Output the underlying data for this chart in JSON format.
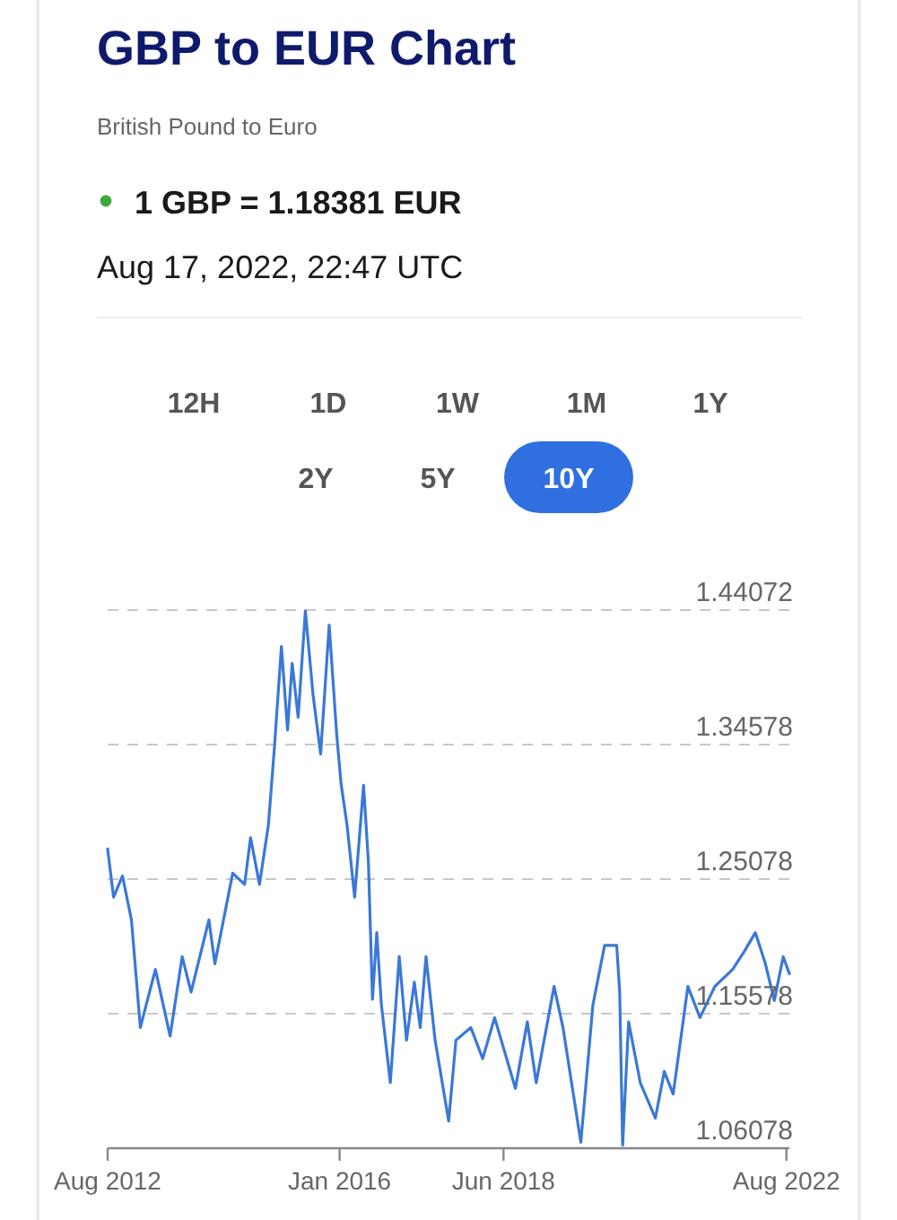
{
  "chart_data": {
    "type": "line",
    "title": "GBP to EUR Chart",
    "subtitle": "British Pound to Euro",
    "annotations": [
      "1 GBP = 1.18381 EUR",
      "Aug 17, 2022, 22:47 UTC",
      "12H",
      "1D",
      "1W",
      "1M",
      "1Y",
      "2Y",
      "5Y",
      "10Y"
    ],
    "x": [
      "2012-08-01",
      "2012-09-02",
      "2012-10-20",
      "2012-12-07",
      "2013-01-24",
      "2013-04-15",
      "2013-07-03",
      "2013-09-06",
      "2013-10-24",
      "2014-01-28",
      "2014-03-01",
      "2014-06-05",
      "2014-08-08",
      "2014-09-09",
      "2014-10-27",
      "2014-12-14",
      "2015-01-15",
      "2015-02-22",
      "2015-03-27",
      "2015-04-21",
      "2015-05-23",
      "2015-07-01",
      "2015-08-11",
      "2015-09-21",
      "2015-11-06",
      "2015-12-17",
      "2016-01-09",
      "2016-02-10",
      "2016-03-22",
      "2016-05-09",
      "2016-06-04",
      "2016-06-26",
      "2016-07-19",
      "2016-08-13",
      "2016-09-30",
      "2016-11-17",
      "2016-12-26",
      "2017-02-06",
      "2017-03-10",
      "2017-04-10",
      "2017-05-29",
      "2017-08-10",
      "2017-09-18",
      "2017-12-07",
      "2018-02-09",
      "2018-04-14",
      "2018-08-04",
      "2018-10-07",
      "2018-11-24",
      "2019-02-28",
      "2019-04-17",
      "2019-07-22",
      "2019-09-25",
      "2019-11-27",
      "2020-01-31",
      "2020-02-16",
      "2020-03-03",
      "2020-04-04",
      "2020-06-06",
      "2020-08-26",
      "2020-10-13",
      "2020-11-30",
      "2021-02-17",
      "2021-04-23",
      "2021-07-12",
      "2021-10-16",
      "2021-12-19",
      "2022-02-15",
      "2022-04-10",
      "2022-05-28",
      "2022-07-15",
      "2022-08-17"
    ],
    "series": [
      {
        "color": "#3a78d8",
        "values": [
          1.272,
          1.238,
          1.253,
          1.222,
          1.146,
          1.187,
          1.14,
          1.196,
          1.171,
          1.222,
          1.191,
          1.255,
          1.247,
          1.28,
          1.247,
          1.289,
          1.343,
          1.415,
          1.356,
          1.403,
          1.365,
          1.44,
          1.381,
          1.339,
          1.43,
          1.352,
          1.318,
          1.289,
          1.238,
          1.317,
          1.263,
          1.166,
          1.213,
          1.162,
          1.107,
          1.196,
          1.137,
          1.178,
          1.146,
          1.196,
          1.137,
          1.08,
          1.137,
          1.146,
          1.124,
          1.153,
          1.103,
          1.15,
          1.107,
          1.175,
          1.146,
          1.065,
          1.162,
          1.204,
          1.204,
          1.171,
          1.063,
          1.15,
          1.107,
          1.082,
          1.115,
          1.099,
          1.175,
          1.153,
          1.175,
          1.187,
          1.2,
          1.213,
          1.191,
          1.165,
          1.196,
          1.184
        ]
      }
    ],
    "xlim": [
      "2012-08-01",
      "2022-08-17"
    ],
    "xticks": [
      {
        "value": "2012-08-01",
        "label": "Aug 2012"
      },
      {
        "value": "2016-01-01",
        "label": "Jan 2016"
      },
      {
        "value": "2018-06-01",
        "label": "Jun 2018"
      },
      {
        "value": "2022-08-01",
        "label": "Aug 2022"
      }
    ],
    "ylim": [
      1.06078,
      1.44072
    ],
    "yticks": [
      1.44072,
      1.34578,
      1.25078,
      1.15578,
      1.06078
    ],
    "grid": "y",
    "marker": "none",
    "line_style": "solid"
  }
}
